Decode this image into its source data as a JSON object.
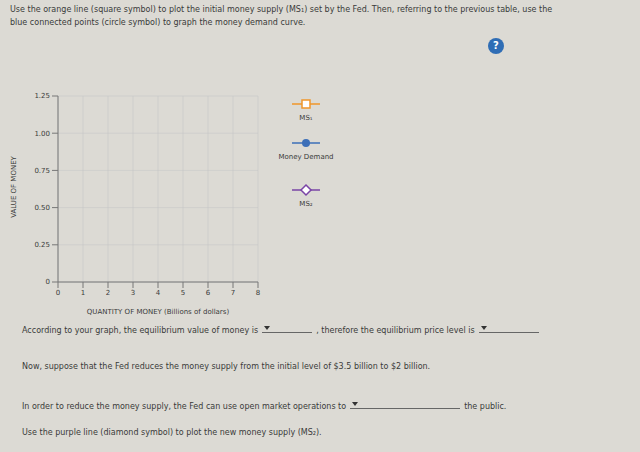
{
  "instructions": "Use the orange line (square symbol) to plot the initial money supply (MS₁) set by the Fed. Then, referring to the previous table, use the blue connected points (circle symbol) to graph the money demand curve.",
  "help": "?",
  "chart_data": {
    "type": "scatter",
    "xlabel": "QUANTITY OF MONEY (Billions of dollars)",
    "ylabel": "VALUE OF MONEY",
    "xlim": [
      0,
      8
    ],
    "xticks": [
      0,
      1,
      2,
      3,
      4,
      5,
      6,
      7,
      8
    ],
    "ylim": [
      0,
      1.25
    ],
    "yticks": [
      0,
      0.25,
      {
        "value": 0.5,
        "label": "0.50"
      },
      0.75,
      {
        "value": 1,
        "label": "1.00"
      },
      1.25
    ],
    "grid": true,
    "series": [
      {
        "name": "MS₁",
        "color": "#f0962a",
        "marker": "square",
        "x": [],
        "values": []
      },
      {
        "name": "Money Demand",
        "color": "#3d6fb8",
        "marker": "circle",
        "x": [],
        "values": []
      },
      {
        "name": "MS₂",
        "color": "#7a44a6",
        "marker": "diamond",
        "x": [],
        "values": []
      }
    ]
  },
  "lines": [
    [
      "According to your graph, the equilibrium value of money is",
      null,
      ", therefore the equilibrium price level is",
      null
    ],
    [
      "Now, suppose that the Fed reduces the money supply from the initial level of $3.5 billion to $2 billion."
    ],
    [
      "In order to reduce the money supply, the Fed can use open market operations to",
      null,
      "the public."
    ],
    [
      "Use the purple line (diamond symbol) to plot the new money supply (MS₂)."
    ]
  ]
}
